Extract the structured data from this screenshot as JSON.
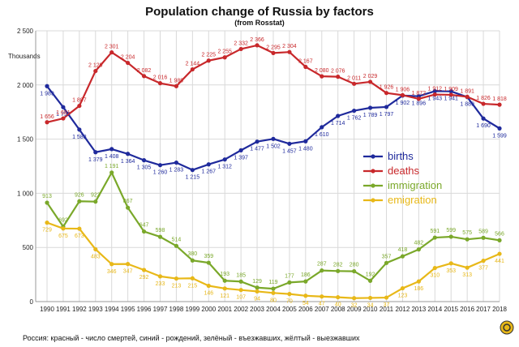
{
  "chart_data": {
    "type": "line",
    "title": "Population change of Russia by factors",
    "subtitle": "(from Rosstat)",
    "ylabel": "Thousands",
    "ylim": [
      0,
      2500
    ],
    "yticks": [
      "0",
      "500",
      "1 000",
      "1 500",
      "2 000",
      "2 500"
    ],
    "x": [
      "1990",
      "1991",
      "1992",
      "1993",
      "1994",
      "1995",
      "1996",
      "1997",
      "1998",
      "1999",
      "2000",
      "2001",
      "2002",
      "2003",
      "2004",
      "2005",
      "2006",
      "2007",
      "2008",
      "2009",
      "2010",
      "2011",
      "2012",
      "2013",
      "2014",
      "2015",
      "2016",
      "2017",
      "2018"
    ],
    "grid": true,
    "legend_position": "center-right",
    "series": [
      {
        "name": "births",
        "color": "#1f2a9c",
        "values": [
          1989,
          1795,
          1588,
          1379,
          1408,
          1364,
          1305,
          1260,
          1283,
          1215,
          1267,
          1312,
          1397,
          1477,
          1502,
          1457,
          1480,
          1610,
          1714,
          1762,
          1789,
          1797,
          1902,
          1896,
          1943,
          1941,
          1889,
          1690,
          1599
        ],
        "labels": [
          "1 989",
          "1 795",
          "1 588",
          "1 379",
          "1 408",
          "1 364",
          "1 305",
          "1 260",
          "1 283",
          "1 215",
          "1 267",
          "1 312",
          "1 397",
          "1 477",
          "1 502",
          "1 457",
          "1 480",
          "1 610",
          "1 714",
          "1 762",
          "1 789",
          "1 797",
          "1 902",
          "1 896",
          "1 943",
          "1 941",
          "1 889",
          "1 690",
          "1 599"
        ]
      },
      {
        "name": "deaths",
        "color": "#c8282b",
        "values": [
          1656,
          1691,
          1807,
          2129,
          2301,
          2204,
          2082,
          2016,
          1989,
          2144,
          2225,
          2255,
          2332,
          2366,
          2295,
          2304,
          2167,
          2080,
          2076,
          2011,
          2029,
          1926,
          1906,
          1872,
          1912,
          1909,
          1891,
          1826,
          1818
        ],
        "labels": [
          "1 656",
          "1 691",
          "1 807",
          "2 129",
          "2 301",
          "2 204",
          "2 082",
          "2 016",
          "1 989",
          "2 144",
          "2 225",
          "2 255",
          "2 332",
          "2 366",
          "2 295",
          "2 304",
          "2 167",
          "2 080",
          "2 076",
          "2 011",
          "2 029",
          "1 926",
          "1 906",
          "1 872",
          "1 912",
          "1 909",
          "1 891",
          "1 826",
          "1 818"
        ]
      },
      {
        "name": "immigration",
        "color": "#7aa82a",
        "values": [
          913,
          692,
          926,
          923,
          1191,
          867,
          647,
          598,
          514,
          380,
          359,
          193,
          185,
          129,
          119,
          177,
          186,
          287,
          282,
          280,
          192,
          357,
          418,
          482,
          591,
          599,
          575,
          589,
          566
        ],
        "labels": [
          "913",
          "692",
          "926",
          "923",
          "1 191",
          "867",
          "647",
          "598",
          "514",
          "380",
          "359",
          "193",
          "185",
          "129",
          "119",
          "177",
          "186",
          "287",
          "282",
          "280",
          "192",
          "357",
          "418",
          "482",
          "591",
          "599",
          "575",
          "589",
          "566"
        ]
      },
      {
        "name": "emigration",
        "color": "#e8b818",
        "values": [
          729,
          675,
          673,
          483,
          346,
          347,
          292,
          233,
          213,
          215,
          146,
          121,
          107,
          94,
          80,
          70,
          54,
          47,
          40,
          32,
          34,
          37,
          123,
          186,
          310,
          353,
          313,
          377,
          441
        ],
        "labels": [
          "729",
          "675",
          "673",
          "483",
          "346",
          "347",
          "292",
          "233",
          "213",
          "215",
          "146",
          "121",
          "107",
          "94",
          "80",
          "70",
          "54",
          "47",
          "40",
          "32",
          "34",
          "37",
          "123",
          "186",
          "310",
          "353",
          "313",
          "377",
          "441"
        ]
      }
    ]
  },
  "caption": "Россия: красный - число смертей, синий - рождений, зелёный - въезжавших, жёлтый - выезжавших"
}
